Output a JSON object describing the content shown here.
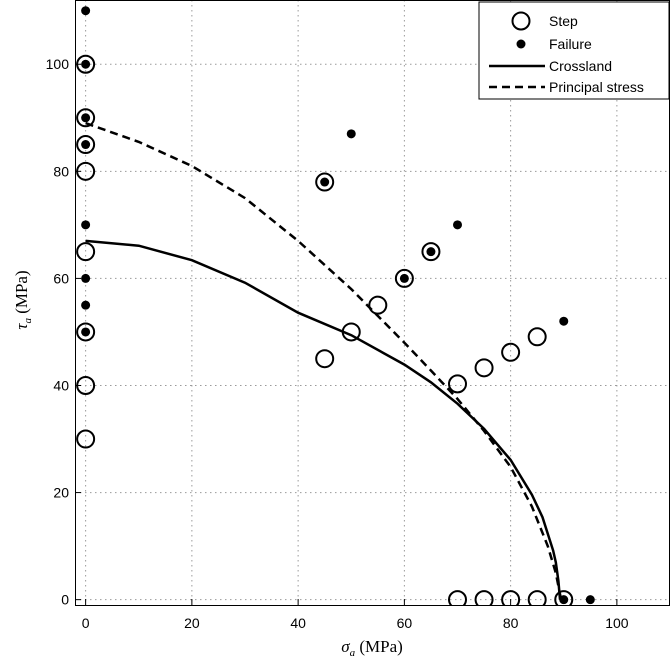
{
  "chart_data": {
    "type": "scatter",
    "xlabel": "σa (MPa)",
    "ylabel": "τa (MPa)",
    "xlim": [
      -2,
      110
    ],
    "ylim": [
      -1,
      112
    ],
    "xticks": [
      0,
      20,
      40,
      60,
      80,
      100
    ],
    "yticks": [
      0,
      20,
      40,
      60,
      80,
      100
    ],
    "grid": true,
    "legend_position": "top-right",
    "legend": [
      "Step",
      "Failure",
      "Crossland",
      "Principal stress"
    ],
    "series": [
      {
        "name": "Step",
        "marker": "open-circle",
        "points": [
          [
            0,
            100
          ],
          [
            0,
            90
          ],
          [
            0,
            85
          ],
          [
            0,
            80
          ],
          [
            0,
            65
          ],
          [
            0,
            50
          ],
          [
            0,
            40
          ],
          [
            0,
            30
          ],
          [
            45,
            78
          ],
          [
            45,
            45
          ],
          [
            50,
            50
          ],
          [
            55,
            55
          ],
          [
            60,
            60
          ],
          [
            65,
            65
          ],
          [
            70,
            40.3
          ],
          [
            75,
            43.3
          ],
          [
            80,
            46.2
          ],
          [
            85,
            49.1
          ],
          [
            70,
            0
          ],
          [
            75,
            0
          ],
          [
            80,
            0
          ],
          [
            85,
            0
          ],
          [
            90,
            0
          ]
        ]
      },
      {
        "name": "Failure",
        "marker": "filled-dot",
        "points": [
          [
            0,
            110
          ],
          [
            0,
            100
          ],
          [
            0,
            90
          ],
          [
            0,
            85
          ],
          [
            0,
            70
          ],
          [
            0,
            60
          ],
          [
            0,
            55
          ],
          [
            0,
            50
          ],
          [
            45,
            78
          ],
          [
            50,
            87
          ],
          [
            60,
            60
          ],
          [
            65,
            65
          ],
          [
            70,
            70
          ],
          [
            90,
            52
          ],
          [
            90,
            0
          ],
          [
            95,
            0
          ]
        ]
      },
      {
        "name": "Crossland",
        "line": "solid",
        "points": [
          [
            0,
            67
          ],
          [
            10,
            66.1
          ],
          [
            20,
            63.4
          ],
          [
            30,
            59.2
          ],
          [
            40,
            53.6
          ],
          [
            50,
            49.4
          ],
          [
            60,
            43.9
          ],
          [
            65,
            40.6
          ],
          [
            70,
            36.6
          ],
          [
            75,
            31.9
          ],
          [
            80,
            26.1
          ],
          [
            84,
            19.6
          ],
          [
            86,
            15.4
          ],
          [
            88,
            9.2
          ],
          [
            88.5,
            7
          ],
          [
            89,
            3.5
          ],
          [
            89.3,
            0
          ]
        ]
      },
      {
        "name": "Principal stress",
        "line": "dashed",
        "points": [
          [
            0,
            89
          ],
          [
            10,
            85.5
          ],
          [
            20,
            81
          ],
          [
            30,
            75
          ],
          [
            40,
            67
          ],
          [
            50,
            58
          ],
          [
            55,
            53
          ],
          [
            60,
            48
          ],
          [
            65,
            42.8
          ],
          [
            70,
            37.5
          ],
          [
            75,
            31.5
          ],
          [
            80,
            24.8
          ],
          [
            84,
            17.4
          ],
          [
            87,
            10
          ],
          [
            88.5,
            5
          ],
          [
            89.5,
            0
          ]
        ]
      }
    ]
  }
}
